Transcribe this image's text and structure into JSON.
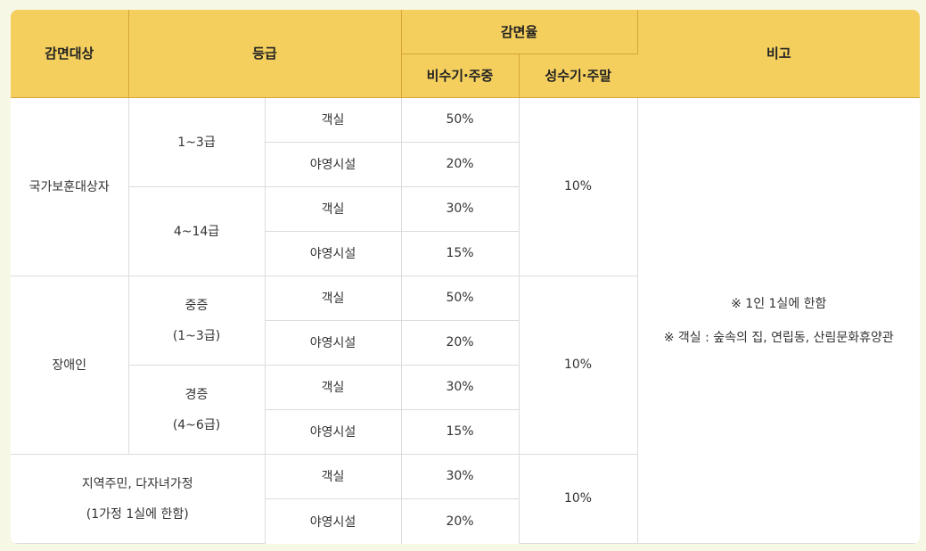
{
  "header": {
    "target": "감면대상",
    "grade": "등급",
    "rate": "감면율",
    "offpeak": "비수기·주중",
    "peak": "성수기·주말",
    "note": "비고"
  },
  "groups": {
    "veteran": {
      "name": "국가보훈대상자",
      "g1": "1~3급",
      "g2": "4~14급",
      "peak": "10%"
    },
    "disabled": {
      "name": "장애인",
      "g1a": "중증",
      "g1b": "(1~3급)",
      "g2a": "경증",
      "g2b": "(4~6급)",
      "peak": "10%"
    },
    "resident": {
      "name1": "지역주민, 다자녀가정",
      "name2": "(1가정 1실에 한함)",
      "peak": "10%"
    }
  },
  "rows": [
    {
      "type": "객실",
      "rate": "50%"
    },
    {
      "type": "야영시설",
      "rate": "20%"
    },
    {
      "type": "객실",
      "rate": "30%"
    },
    {
      "type": "야영시설",
      "rate": "15%"
    },
    {
      "type": "객실",
      "rate": "50%"
    },
    {
      "type": "야영시설",
      "rate": "20%"
    },
    {
      "type": "객실",
      "rate": "30%"
    },
    {
      "type": "야영시설",
      "rate": "15%"
    },
    {
      "type": "객실",
      "rate": "30%"
    },
    {
      "type": "야영시설",
      "rate": "20%"
    }
  ],
  "note": {
    "line1": "※ 1인 1실에 한함",
    "line2": "※ 객실 : 숲속의 집, 연립동, 산림문화휴양관"
  }
}
